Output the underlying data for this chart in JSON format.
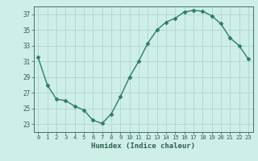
{
  "x": [
    0,
    1,
    2,
    3,
    4,
    5,
    6,
    7,
    8,
    9,
    10,
    11,
    12,
    13,
    14,
    15,
    16,
    17,
    18,
    19,
    20,
    21,
    22,
    23
  ],
  "y": [
    31.5,
    28.0,
    26.2,
    26.0,
    25.3,
    24.8,
    23.5,
    23.1,
    24.3,
    26.5,
    29.0,
    31.0,
    33.3,
    35.0,
    36.0,
    36.5,
    37.3,
    37.5,
    37.4,
    36.8,
    35.8,
    34.0,
    33.0,
    31.3
  ],
  "line_color": "#2e7d6e",
  "marker": "D",
  "marker_size": 2.5,
  "bg_color": "#ceeee8",
  "grid_color": "#aad4cc",
  "xlabel": "Humidex (Indice chaleur)",
  "ylim": [
    22,
    38
  ],
  "yticks": [
    23,
    25,
    27,
    29,
    31,
    33,
    35,
    37
  ],
  "xticks": [
    0,
    1,
    2,
    3,
    4,
    5,
    6,
    7,
    8,
    9,
    10,
    11,
    12,
    13,
    14,
    15,
    16,
    17,
    18,
    19,
    20,
    21,
    22,
    23
  ],
  "xlim": [
    -0.5,
    23.5
  ]
}
